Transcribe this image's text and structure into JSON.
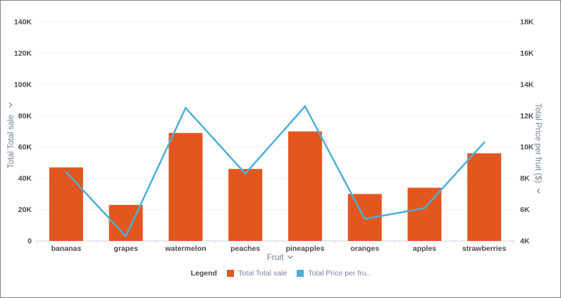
{
  "chart_data": {
    "type": "combo",
    "categories": [
      "bananas",
      "grapes",
      "watermelon",
      "peaches",
      "pineapples",
      "oranges",
      "apples",
      "strawberries"
    ],
    "series": [
      {
        "name": "Total Total sale",
        "type": "bar",
        "axis": "left",
        "color": "#e2571f",
        "values": [
          47000,
          23000,
          69000,
          46000,
          70000,
          30000,
          34000,
          56000
        ]
      },
      {
        "name": "Total Price per fruit ($)",
        "type": "line",
        "axis": "right",
        "color": "#4bb0d6",
        "values": [
          8400,
          4300,
          12500,
          8300,
          12600,
          5400,
          6100,
          10300
        ]
      }
    ],
    "left_axis": {
      "title": "Total Total sale",
      "min": 0,
      "max": 140000,
      "ticks": [
        "0",
        "20K",
        "40K",
        "60K",
        "80K",
        "100K",
        "120K",
        "140K"
      ]
    },
    "right_axis": {
      "title": "Total Price per fruit ($)",
      "min": 4000,
      "max": 18000,
      "ticks": [
        "4K",
        "6K",
        "8K",
        "10K",
        "12K",
        "14K",
        "16K",
        "18K"
      ]
    },
    "x_axis": {
      "title": "Fruit"
    },
    "legend": {
      "label": "Legend",
      "items": [
        {
          "label": "Total Total sale",
          "color": "#e2571f"
        },
        {
          "label": "Total Price per fru..",
          "color": "#4bb0d6"
        }
      ]
    },
    "grid": true,
    "legend_position": "bottom"
  }
}
